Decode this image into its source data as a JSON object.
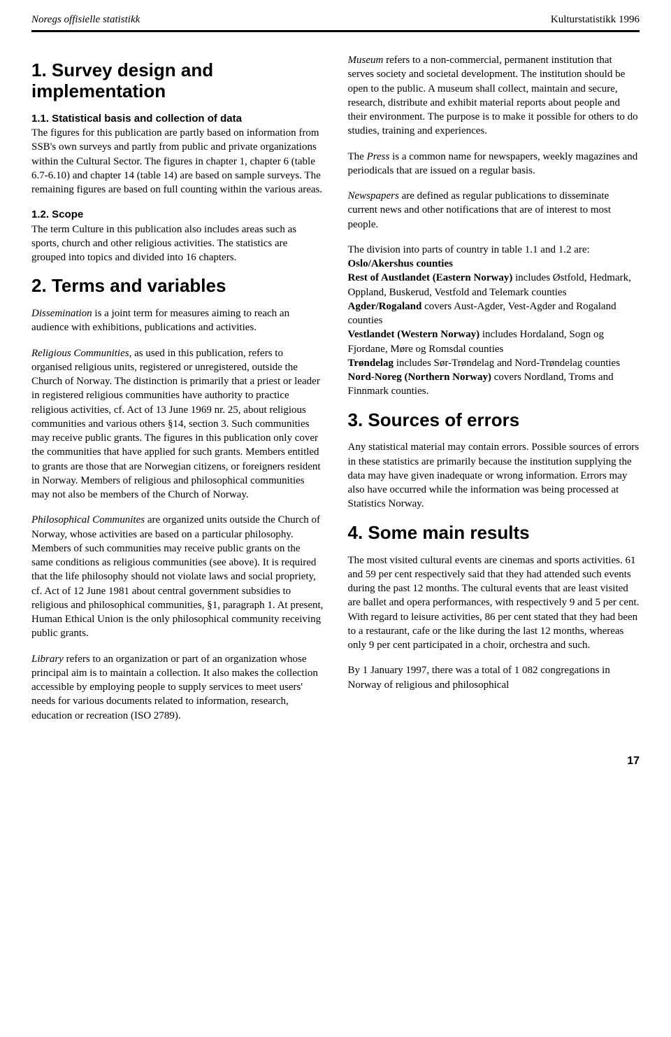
{
  "header": {
    "left": "Noregs offisielle statistikk",
    "right": "Kulturstatistikk 1996"
  },
  "left_col": {
    "s1_title": "1. Survey design and implementation",
    "s11_head": "1.1. Statistical basis and collection of data",
    "s11_body": "The figures for this publication are partly based on information from SSB's own surveys and partly from public and private organizations within the Cultural Sector. The figures in chapter 1, chapter 6 (table 6.7-6.10) and chapter 14 (table 14) are based on sample surveys. The remaining figures are based on full counting within the various areas.",
    "s12_head": "1.2. Scope",
    "s12_body": "The term Culture in this publication also includes areas such as sports, church and other religious activities. The statistics are grouped into topics and divided into 16 chapters.",
    "s2_title": "2. Terms and variables",
    "dissem_term": "Dissemination",
    "dissem_body": " is a joint term for measures aiming to reach an audience with exhibitions, publications and activities.",
    "relig_term": "Religious Communities",
    "relig_body": ", as used in this publication, refers to organised religious units, registered or unregistered, outside the Church of Norway. The distinction is primarily that a priest or leader in registered religious communities have authority to practice religious activities, cf. Act of 13 June 1969 nr. 25, about religious communities and various others §14, section 3. Such communities may receive public grants. The figures in this publication only cover the communities that have applied for such grants. Members entitled to grants are those that are Norwegian citizens, or foreigners resident in Norway. Members of religious and philosophical communities may not also be members of the Church of Norway.",
    "phil_term": "Philosophical Communites",
    "phil_body": " are organized units outside the Church of Norway, whose activities are based on a particular philosophy. Members of such communities may receive public grants on the same conditions as religious communities (see above). It is required that the life philosophy should not violate laws and social propriety, cf. Act of 12 June 1981 about central government subsidies to religious and philosophical communities, §1, paragraph 1. At present, Human Ethical Union is the only philosophical community receiving public grants.",
    "lib_term": "Library",
    "lib_body": " refers to an organization or part of an organization whose principal aim is to maintain a collection. It also makes the collection accessible by employing people to supply services to meet users' needs for various documents related to information, research, education or recreation (ISO 2789)."
  },
  "right_col": {
    "museum_term": "Museum",
    "museum_body": " refers to a non-commercial, permanent institution that serves society and societal development. The institution should be open to the public. A museum shall collect, maintain and secure, research, distribute and exhibit material reports about people and their environment. The purpose is to make it possible for others to do studies, training and experiences.",
    "press_pre": "The ",
    "press_term": "Press",
    "press_body": " is a common name for newspapers, weekly magazines and periodicals that are issued on a regular basis.",
    "news_term": "Newspapers",
    "news_body": " are defined as regular publications to disseminate current news and other notifications that are of interest to most people.",
    "div_intro": "The division into parts of country in table 1.1 and 1.2 are:",
    "reg1_b": "Oslo/Akershus counties",
    "reg2_b": "Rest of Austlandet (Eastern Norway)",
    "reg2_t": " includes Østfold, Hedmark, Oppland, Buskerud, Vestfold and Telemark counties",
    "reg3_b": "Agder/Rogaland",
    "reg3_t": " covers Aust-Agder, Vest-Agder and Rogaland counties",
    "reg4_b": "Vestlandet (Western Norway)",
    "reg4_t": " includes Hordaland, Sogn og Fjordane, Møre og Romsdal counties",
    "reg5_b": "Trøndelag",
    "reg5_t": " includes Sør-Trøndelag and Nord-Trøndelag counties",
    "reg6_b": "Nord-Noreg (Northern Norway)",
    "reg6_t": " covers Nordland, Troms and Finnmark counties.",
    "s3_title": "3. Sources of errors",
    "s3_body": "Any statistical material may contain errors. Possible sources of errors in these statistics are primarily because the institution supplying the data may have given inadequate or wrong information. Errors may also have occurred while the information was being processed at Statistics Norway.",
    "s4_title": "4. Some main results",
    "s4_p1": "The most visited cultural events are cinemas and sports activities. 61 and 59 per cent respectively said that they had attended such events during the past 12 months. The cultural events that are least visited are ballet and opera performances, with respectively 9 and 5 per cent. With regard to leisure activities, 86 per cent stated that they had been to a restaurant, cafe or the like during the last 12 months, whereas only 9 per cent participated in a choir, orchestra and such.",
    "s4_p2": "By 1 January 1997, there was a total of 1 082 congregations in Norway of religious and philosophical"
  },
  "page_number": "17"
}
